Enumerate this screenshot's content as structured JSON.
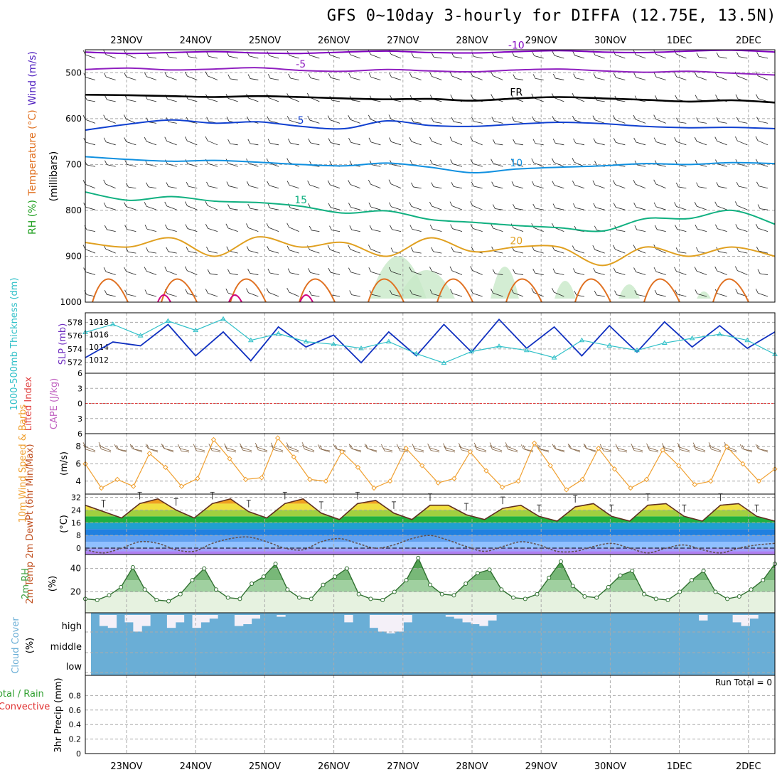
{
  "title": "GFS 0~10day 3-hourly for DIFFA (12.75E, 13.5N)",
  "colors": {
    "grid": "#aaaaaa",
    "temp_minus10": "#8000c0",
    "temp_minus5": "#9020c0",
    "freeze": "#000000",
    "temp_5": "#1040d0",
    "temp_10": "#1090e0",
    "temp_15": "#10b080",
    "temp_20": "#e0a020",
    "temp_25": "#e07020",
    "temp_30": "#d00080",
    "rh_fill": "#c8e8c8",
    "slp": "#1030c0",
    "thickness": "#30c0c8",
    "wind10m": "#f0a030",
    "barb": "#806040",
    "rh2m": "#40a040",
    "cloud": "#6aaed6",
    "cape_zero": "#e04040"
  },
  "chart_data": {
    "type": "meteogram",
    "dates": [
      "23NOV",
      "24NOV",
      "25NOV",
      "26NOV",
      "27NOV",
      "28NOV",
      "29NOV",
      "30NOV",
      "1DEC",
      "2DEC"
    ],
    "upper_air": {
      "ylabel": "(millibars)",
      "legend": [
        "RH (%)",
        "Temperature (°C)",
        "Wind (m/s)"
      ],
      "yticks": [
        500,
        600,
        700,
        800,
        900,
        1000
      ],
      "ylim": [
        450,
        1000
      ],
      "isotherms": [
        {
          "label": "-10",
          "pressure_levels": [
            455,
            458,
            456,
            454,
            457,
            458,
            455,
            453,
            456,
            457,
            454,
            452,
            455,
            456,
            453,
            451,
            455
          ]
        },
        {
          "label": "-5",
          "pressure_levels": [
            493,
            490,
            494,
            492,
            489,
            495,
            497,
            493,
            496,
            498,
            494,
            492,
            496,
            499,
            497,
            501,
            505
          ]
        },
        {
          "label": "FR",
          "pressure_levels": [
            548,
            549,
            551,
            553,
            551,
            553,
            556,
            558,
            557,
            561,
            556,
            553,
            556,
            559,
            563,
            560,
            565
          ]
        },
        {
          "label": "5",
          "pressure_levels": [
            625,
            612,
            603,
            610,
            607,
            617,
            622,
            605,
            615,
            617,
            612,
            608,
            611,
            617,
            620,
            619,
            622
          ]
        },
        {
          "label": "10",
          "pressure_levels": [
            683,
            689,
            693,
            691,
            695,
            700,
            703,
            697,
            706,
            718,
            710,
            706,
            703,
            698,
            700,
            696,
            698
          ]
        },
        {
          "label": "15",
          "pressure_levels": [
            760,
            778,
            770,
            780,
            783,
            791,
            806,
            801,
            820,
            826,
            833,
            838,
            845,
            818,
            818,
            800,
            830
          ]
        },
        {
          "label": "20",
          "pressure_levels": [
            870,
            880,
            860,
            900,
            858,
            880,
            870,
            900,
            860,
            890,
            880,
            880,
            920,
            880,
            900,
            880,
            900
          ]
        }
      ]
    },
    "slp_thickness": {
      "left_label": "1000-500mb Thickness (dm)",
      "right_label": "SLP (mb)",
      "left_ticks": [
        572,
        574,
        576,
        578
      ],
      "right_ticks": [
        1012,
        1014,
        1016,
        1018
      ],
      "slp_mb": [
        1012.3,
        1014.8,
        1014.2,
        1017.6,
        1012.6,
        1016.4,
        1011.8,
        1017.2,
        1014.0,
        1015.9,
        1011.5,
        1016.4,
        1012.6,
        1017.6,
        1013.2,
        1018.4,
        1013.8,
        1017.2,
        1012.6,
        1017.4,
        1013.2,
        1018.0,
        1014.0,
        1017.4,
        1013.8,
        1016.4
      ],
      "thickness_dm": [
        576.5,
        577.7,
        576.0,
        578.2,
        576.8,
        578.5,
        575.3,
        576.3,
        575.1,
        574.7,
        574.1,
        575.1,
        573.3,
        571.9,
        573.6,
        574.4,
        573.8,
        572.7,
        575.3,
        574.5,
        573.8,
        574.9,
        575.6,
        576.2,
        575.3,
        573.2
      ]
    },
    "cape_lifted": {
      "left_label": "Lifted Index",
      "right_label": "CAPE (J/kg)",
      "yticks": [
        -6,
        -3,
        0,
        3,
        6
      ],
      "lifted_index": []
    },
    "wind10m": {
      "label": "10m Wind Speed & Barbs",
      "unit": "(m/s)",
      "yticks": [
        4,
        6,
        8
      ],
      "speed_ms": [
        6.0,
        3.2,
        4.2,
        3.4,
        7.2,
        5.6,
        3.4,
        4.3,
        8.8,
        6.6,
        4.2,
        4.4,
        9.0,
        6.8,
        4.2,
        4.0,
        7.4,
        5.6,
        3.2,
        4.0,
        7.8,
        5.8,
        3.8,
        4.3,
        7.4,
        5.2,
        3.3,
        4.0,
        8.4,
        5.8,
        3.0,
        4.2,
        7.8,
        5.4,
        3.2,
        4.2,
        7.6,
        5.8,
        3.6,
        4.0,
        8.0,
        6.0,
        4.0,
        5.4
      ]
    },
    "temperature2m": {
      "label": "2m Temp 2m DewPt (6hr Min/Max)",
      "unit": "(°C)",
      "yticks": [
        0,
        8,
        16,
        24,
        32
      ],
      "temp_c": [
        27,
        23,
        19,
        28,
        31,
        24,
        19,
        28,
        31,
        23,
        19,
        28,
        31,
        22,
        18,
        28,
        30,
        22,
        18,
        27,
        27,
        21,
        18,
        25,
        27,
        20,
        17,
        26,
        28,
        20,
        17,
        27,
        28,
        20,
        17,
        27,
        28,
        20,
        17
      ],
      "dewpt_c": [
        -1,
        -3,
        0,
        4,
        3,
        -1,
        -2,
        3,
        6,
        7,
        4,
        0,
        -1,
        4,
        6,
        3,
        0,
        2,
        6,
        8,
        5,
        1,
        -2,
        1,
        4,
        2,
        -2,
        -2,
        1,
        3,
        0,
        -3,
        0,
        2,
        -1,
        -3,
        0,
        2,
        3
      ]
    },
    "rh2m": {
      "label": "2m RH",
      "unit": "(%)",
      "yticks": [
        20,
        40
      ],
      "rh_pct": [
        14,
        13,
        17,
        24,
        41,
        22,
        13,
        12,
        18,
        30,
        40,
        22,
        15,
        14,
        27,
        33,
        44,
        22,
        15,
        14,
        26,
        33,
        40,
        18,
        14,
        13,
        20,
        30,
        49,
        26,
        18,
        17,
        27,
        36,
        39,
        22,
        15,
        14,
        18,
        32,
        46,
        25,
        16,
        15,
        24,
        34,
        38,
        18,
        14,
        13,
        20,
        30,
        38,
        20,
        14,
        16,
        22,
        30,
        44
      ]
    },
    "cloud": {
      "label": "Cloud Cover",
      "unit": "(%)",
      "levels": [
        "high",
        "middle",
        "low"
      ],
      "high_pct": [
        0,
        60,
        70,
        0,
        40,
        90,
        60,
        0,
        0,
        70,
        40,
        0,
        70,
        40,
        20,
        0,
        0,
        60,
        50,
        20,
        0,
        0,
        10,
        0,
        0,
        0,
        0,
        0,
        0,
        0,
        40,
        0,
        0,
        70,
        90,
        100,
        90,
        40,
        0,
        0,
        0,
        0,
        10,
        20,
        40,
        50,
        60,
        30,
        0,
        0,
        0,
        0,
        0,
        0,
        0,
        0,
        0,
        0,
        0,
        0,
        0,
        0,
        0,
        0,
        0,
        0,
        0,
        0,
        0,
        0,
        0,
        0,
        30,
        0,
        0,
        0,
        40,
        60,
        20,
        0,
        0
      ]
    },
    "precip": {
      "left_label": "Total / Rain Convective",
      "ylabel": "3hr Precip (mm)",
      "yticks": [
        0,
        0.2,
        0.4,
        0.6,
        0.8
      ],
      "run_total_text": "Run Total = 0",
      "precip_mm": []
    }
  }
}
